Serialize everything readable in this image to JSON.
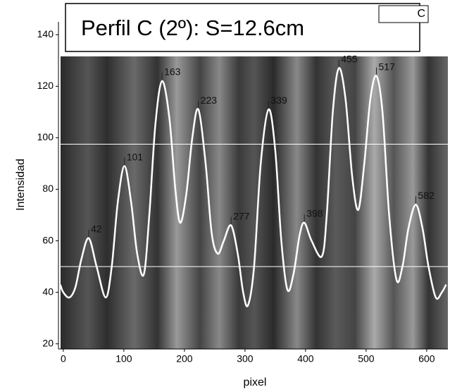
{
  "chart_data": {
    "type": "line",
    "title": "Perfil C (2º):  S=12.6cm",
    "x_label": "pixel",
    "y_label": "Intensidad",
    "xlim": [
      -8,
      635
    ],
    "ylim": [
      18,
      145
    ],
    "xticks": [
      0,
      100,
      200,
      300,
      400,
      500,
      600
    ],
    "yticks": [
      20,
      40,
      60,
      80,
      100,
      120,
      140
    ],
    "hlines": [
      97.5,
      50
    ],
    "hline_color": "#ffffff",
    "legend": "top-right",
    "series": [
      {
        "name": "C",
        "color": "#ffffff",
        "x": [
          -5,
          0,
          10,
          20,
          30,
          42,
          55,
          70,
          80,
          90,
          101,
          112,
          122,
          133,
          142,
          152,
          163,
          175,
          185,
          193,
          203,
          213,
          223,
          235,
          245,
          255,
          265,
          277,
          288,
          297,
          305,
          315,
          326,
          339,
          350,
          360,
          370,
          380,
          390,
          398,
          410,
          427,
          435,
          445,
          455,
          466,
          477,
          487,
          497,
          507,
          517,
          527,
          538,
          550,
          560,
          570,
          582,
          593,
          603,
          615,
          625,
          632
        ],
        "values": [
          43,
          40,
          38,
          42,
          53,
          61,
          50,
          38,
          50,
          75,
          89,
          75,
          55,
          47,
          70,
          105,
          122,
          108,
          80,
          67,
          78,
          100,
          111,
          90,
          63,
          55,
          60,
          66,
          55,
          40,
          35,
          50,
          90,
          111,
          95,
          60,
          41,
          47,
          62,
          67,
          60,
          54,
          70,
          110,
          127,
          115,
          85,
          72,
          90,
          115,
          124,
          110,
          70,
          45,
          50,
          65,
          74,
          65,
          50,
          38,
          40,
          43
        ]
      }
    ],
    "peaks": {
      "x": [
        42,
        101,
        163,
        223,
        277,
        339,
        398,
        455,
        517,
        582
      ],
      "y": [
        61,
        89,
        122,
        111,
        66,
        111,
        67,
        127,
        124,
        74
      ]
    }
  }
}
